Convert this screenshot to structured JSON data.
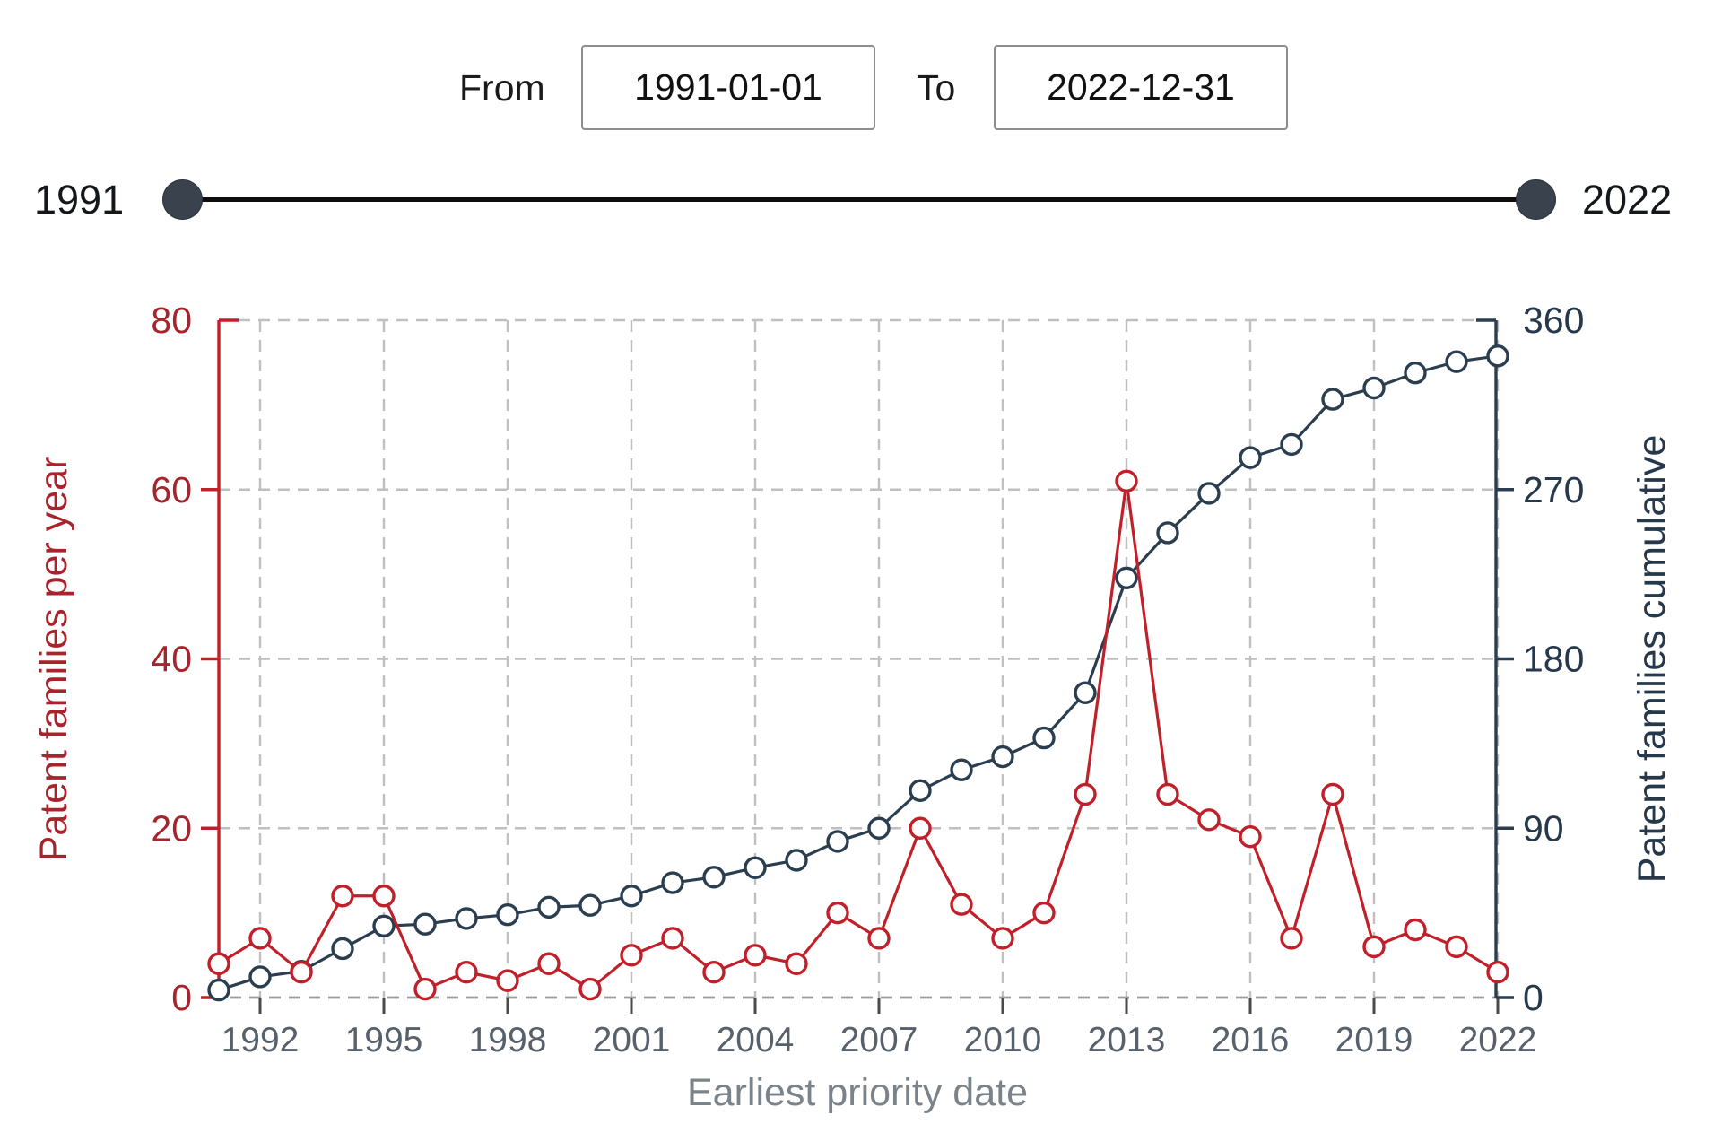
{
  "controls": {
    "from_label": "From",
    "from_value": "1991-01-01",
    "to_label": "To",
    "to_value": "2022-12-31"
  },
  "slider": {
    "min_label": "1991",
    "max_label": "2022",
    "handle_color": "#3a424d"
  },
  "chart_data": {
    "type": "line",
    "x": [
      1991,
      1992,
      1993,
      1994,
      1995,
      1996,
      1997,
      1998,
      1999,
      2000,
      2001,
      2002,
      2003,
      2004,
      2005,
      2006,
      2007,
      2008,
      2009,
      2010,
      2011,
      2012,
      2013,
      2014,
      2015,
      2016,
      2017,
      2018,
      2019,
      2020,
      2021,
      2022
    ],
    "x_ticks": [
      1992,
      1995,
      1998,
      2001,
      2004,
      2007,
      2010,
      2013,
      2016,
      2019,
      2022
    ],
    "xlabel": "Earliest priority date",
    "series": [
      {
        "name": "Patent families per year",
        "axis": "left",
        "color": "#c0202a",
        "values": [
          4,
          7,
          3,
          12,
          12,
          1,
          3,
          2,
          4,
          1,
          5,
          7,
          3,
          5,
          4,
          10,
          7,
          20,
          11,
          7,
          10,
          24,
          61,
          24,
          21,
          19,
          7,
          24,
          6,
          8,
          6,
          3
        ]
      },
      {
        "name": "Patent families cumulative",
        "axis": "right",
        "color": "#2b3e50",
        "values": [
          4,
          11,
          14,
          26,
          38,
          39,
          42,
          44,
          48,
          49,
          54,
          61,
          64,
          69,
          73,
          83,
          90,
          110,
          121,
          128,
          138,
          162,
          223,
          247,
          268,
          287,
          294,
          318,
          324,
          332,
          338,
          341
        ]
      }
    ],
    "left_axis": {
      "label": "Patent families per year",
      "ticks": [
        0,
        20,
        40,
        60,
        80
      ],
      "range": [
        0,
        80
      ],
      "color": "#a8232b"
    },
    "right_axis": {
      "label": "Patent families cumulative",
      "ticks": [
        0,
        90,
        180,
        270,
        360
      ],
      "range": [
        0,
        360
      ],
      "color": "#26394c"
    },
    "grid": true,
    "legend": "none",
    "grid_color": "#bfbfbf",
    "x_tick_label_color": "#57616c",
    "x_title_color": "#7b838a"
  }
}
